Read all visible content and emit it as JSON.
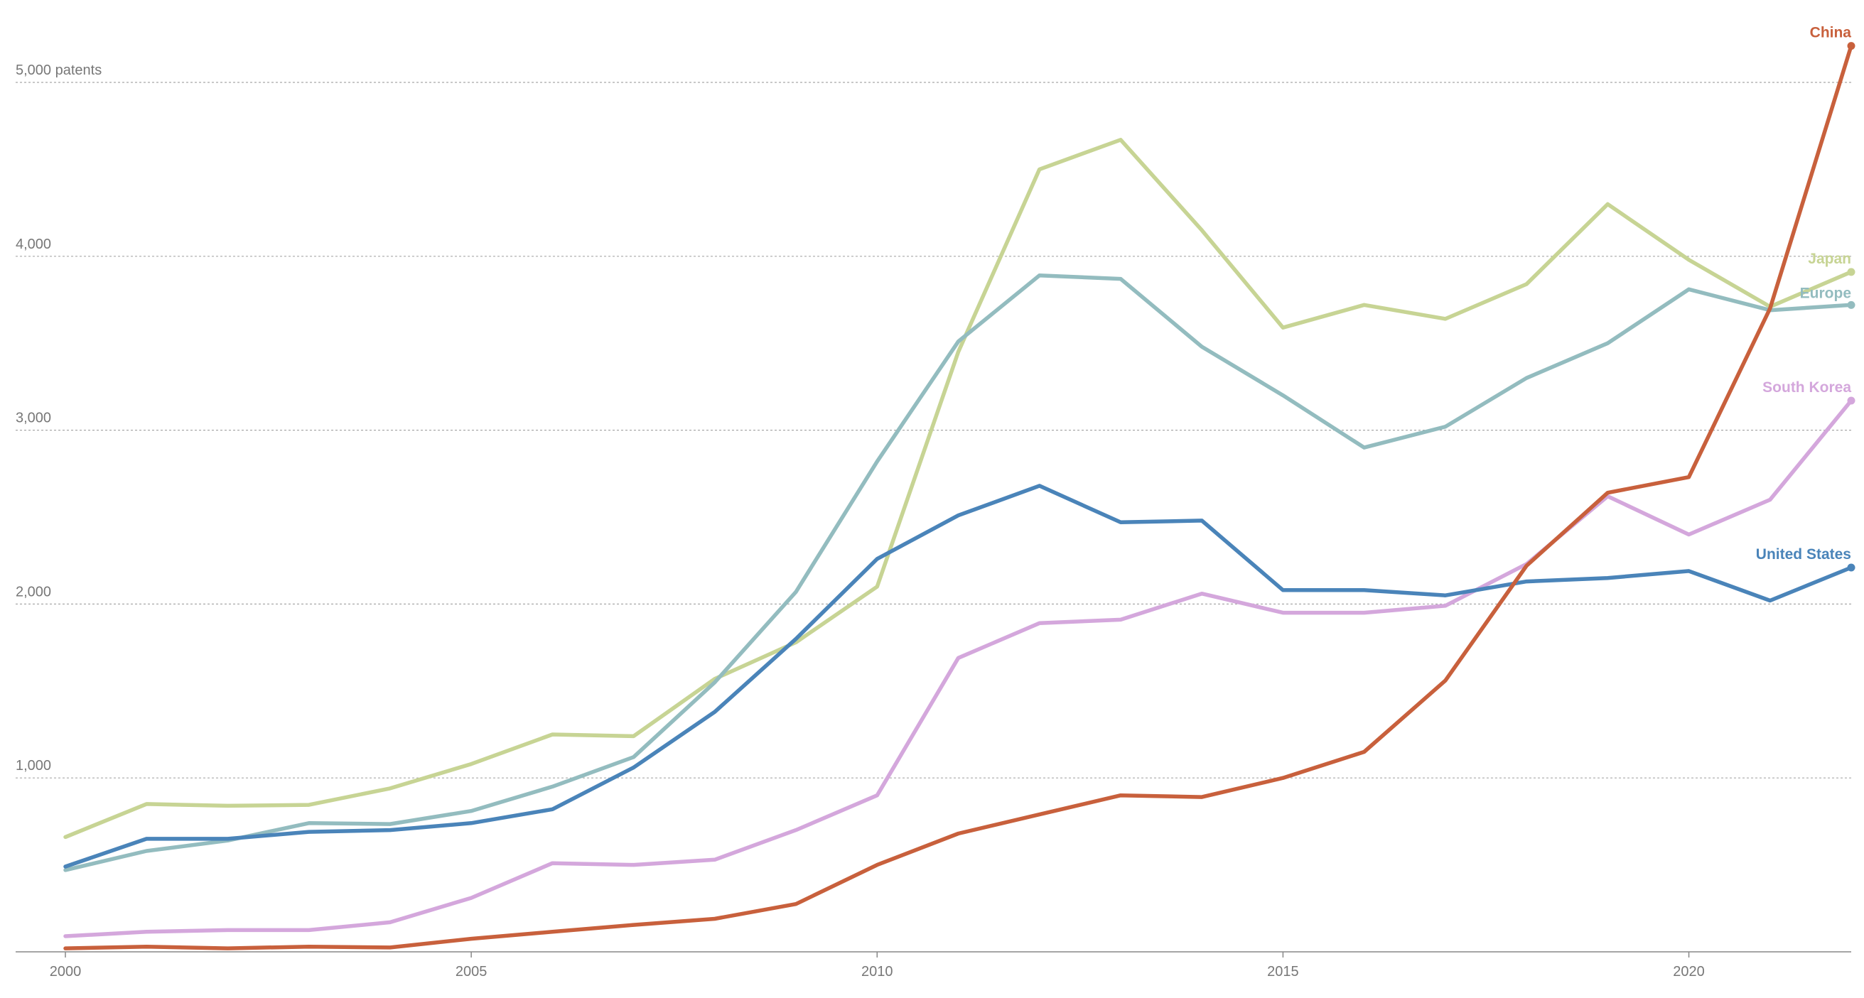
{
  "chart_data": {
    "type": "line",
    "title": "",
    "xlabel": "",
    "ylabel": "",
    "y_unit_label": "5,000 patents",
    "xlim": [
      2000,
      2022
    ],
    "ylim": [
      0,
      5000
    ],
    "grid": true,
    "x_ticks": [
      {
        "value": 2000,
        "label": "2000"
      },
      {
        "value": 2005,
        "label": "2005"
      },
      {
        "value": 2010,
        "label": "2010"
      },
      {
        "value": 2015,
        "label": "2015"
      },
      {
        "value": 2020,
        "label": "2020"
      }
    ],
    "y_ticks": [
      {
        "value": 1000,
        "label": "1,000"
      },
      {
        "value": 2000,
        "label": "2,000"
      },
      {
        "value": 3000,
        "label": "3,000"
      },
      {
        "value": 4000,
        "label": "4,000"
      },
      {
        "value": 5000,
        "label": "5,000 patents"
      }
    ],
    "x": [
      2000,
      2001,
      2002,
      2003,
      2004,
      2005,
      2006,
      2007,
      2008,
      2009,
      2010,
      2011,
      2012,
      2013,
      2014,
      2015,
      2016,
      2017,
      2018,
      2019,
      2020,
      2021,
      2022
    ],
    "series": [
      {
        "name": "Japan",
        "color": "#c7d494",
        "values": [
          660,
          850,
          840,
          845,
          940,
          1080,
          1250,
          1240,
          1570,
          1780,
          2100,
          3450,
          4500,
          4670,
          4150,
          3590,
          3720,
          3640,
          3840,
          4300,
          3980,
          3710,
          3910
        ]
      },
      {
        "name": "Europe",
        "color": "#93bcbf",
        "values": [
          470,
          580,
          640,
          740,
          735,
          810,
          950,
          1120,
          1550,
          2070,
          2820,
          3510,
          3890,
          3870,
          3480,
          3200,
          2900,
          3020,
          3300,
          3500,
          3810,
          3690,
          3720
        ]
      },
      {
        "name": "South Korea",
        "color": "#d4a7dc",
        "values": [
          90,
          115,
          125,
          125,
          170,
          310,
          510,
          500,
          530,
          700,
          900,
          1690,
          1890,
          1910,
          2060,
          1950,
          1950,
          1990,
          2230,
          2620,
          2400,
          2600,
          3170
        ]
      },
      {
        "name": "United States",
        "color": "#4a84b9",
        "values": [
          490,
          650,
          650,
          690,
          700,
          740,
          820,
          1060,
          1380,
          1800,
          2260,
          2510,
          2680,
          2470,
          2480,
          2080,
          2080,
          2050,
          2130,
          2150,
          2190,
          2020,
          2210
        ]
      },
      {
        "name": "China",
        "color": "#c8603c",
        "values": [
          20,
          30,
          20,
          30,
          25,
          75,
          115,
          155,
          190,
          275,
          500,
          680,
          790,
          900,
          890,
          1000,
          1150,
          1560,
          2220,
          2640,
          2730,
          3700,
          5210
        ]
      }
    ]
  }
}
